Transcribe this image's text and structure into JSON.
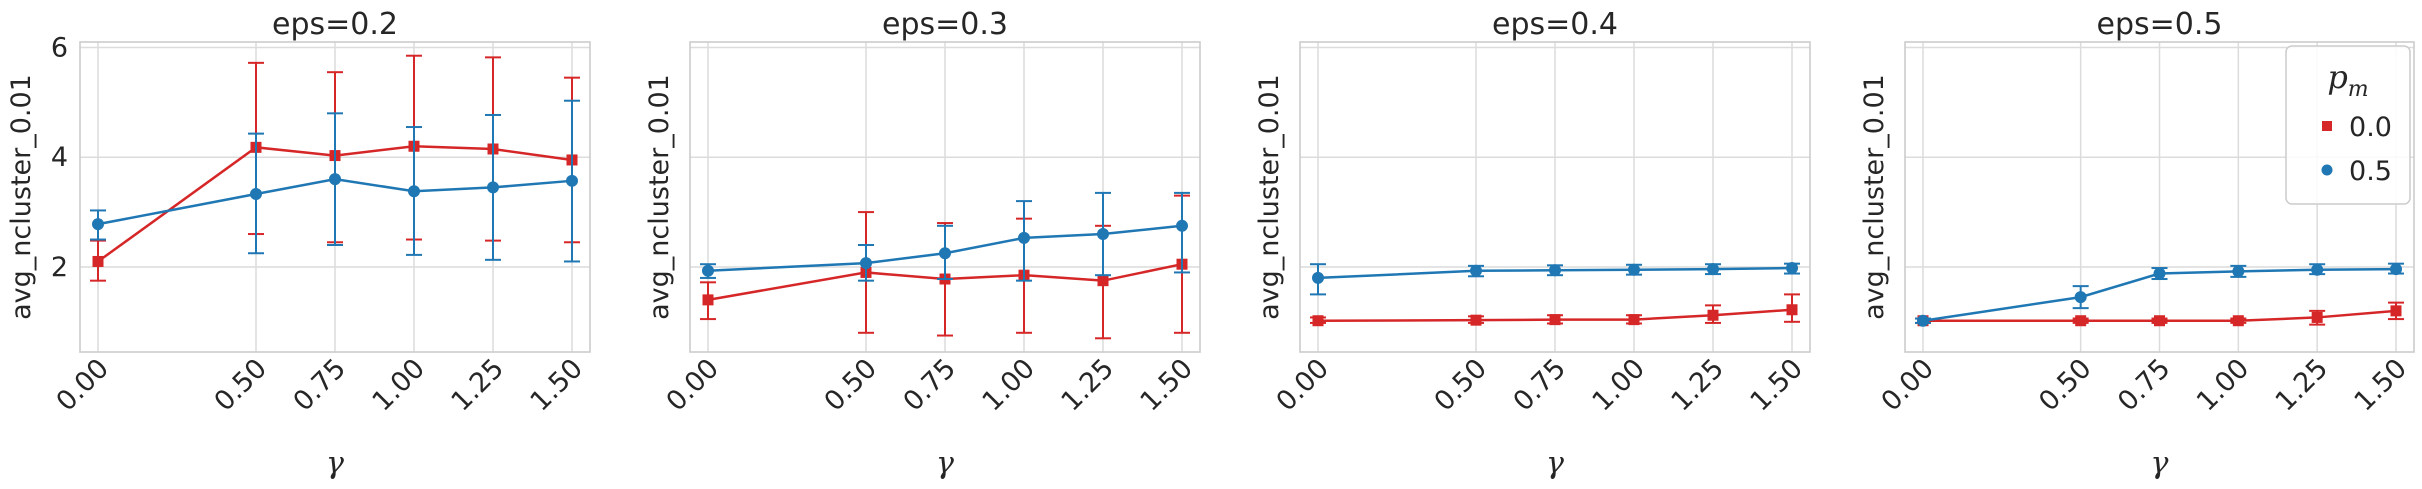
{
  "chart_data": [
    {
      "type": "line",
      "title": "eps=0.2",
      "xlabel": "γ",
      "ylabel": "avg_ncluster_0.01",
      "x": [
        0.0,
        0.5,
        0.75,
        1.0,
        1.25,
        1.5
      ],
      "xticklabels": [
        "0.00",
        "0.50",
        "0.75",
        "1.00",
        "1.25",
        "1.50"
      ],
      "ylim": [
        0.45,
        6.1
      ],
      "yticks": [
        2,
        4,
        6
      ],
      "ytick_labels": [
        "2",
        "4",
        "6"
      ],
      "grid": true,
      "series": [
        {
          "name": "0.0",
          "color": "#d62728",
          "marker": "square",
          "values": [
            2.1,
            4.18,
            4.03,
            4.2,
            4.15,
            3.95
          ],
          "err_low": [
            1.75,
            2.6,
            2.45,
            2.5,
            2.48,
            2.45
          ],
          "err_high": [
            2.48,
            5.72,
            5.55,
            5.85,
            5.82,
            5.45
          ]
        },
        {
          "name": "0.5",
          "color": "#1f77b4",
          "marker": "circle",
          "values": [
            2.78,
            3.33,
            3.6,
            3.38,
            3.45,
            3.57
          ],
          "err_low": [
            2.5,
            2.25,
            2.4,
            2.22,
            2.13,
            2.1
          ],
          "err_high": [
            3.03,
            4.43,
            4.8,
            4.55,
            4.77,
            5.03
          ]
        }
      ]
    },
    {
      "type": "line",
      "title": "eps=0.3",
      "xlabel": "γ",
      "ylabel": "avg_ncluster_0.01",
      "x": [
        0.0,
        0.5,
        0.75,
        1.0,
        1.25,
        1.5
      ],
      "xticklabels": [
        "0.00",
        "0.50",
        "0.75",
        "1.00",
        "1.25",
        "1.50"
      ],
      "ylim": [
        0.45,
        6.1
      ],
      "yticks": [
        2,
        4,
        6
      ],
      "ytick_labels": [],
      "grid": true,
      "series": [
        {
          "name": "0.0",
          "color": "#d62728",
          "marker": "square",
          "values": [
            1.4,
            1.9,
            1.78,
            1.85,
            1.75,
            2.05
          ],
          "err_low": [
            1.05,
            0.8,
            0.75,
            0.8,
            0.7,
            0.8
          ],
          "err_high": [
            1.72,
            3.0,
            2.8,
            2.88,
            2.75,
            3.3
          ]
        },
        {
          "name": "0.5",
          "color": "#1f77b4",
          "marker": "circle",
          "values": [
            1.93,
            2.07,
            2.25,
            2.53,
            2.6,
            2.75
          ],
          "err_low": [
            1.8,
            1.75,
            1.78,
            1.75,
            1.85,
            1.9
          ],
          "err_high": [
            2.05,
            2.4,
            2.75,
            3.2,
            3.35,
            3.35
          ]
        }
      ]
    },
    {
      "type": "line",
      "title": "eps=0.4",
      "xlabel": "γ",
      "ylabel": "avg_ncluster_0.01",
      "x": [
        0.0,
        0.5,
        0.75,
        1.0,
        1.25,
        1.5
      ],
      "xticklabels": [
        "0.00",
        "0.50",
        "0.75",
        "1.00",
        "1.25",
        "1.50"
      ],
      "ylim": [
        0.45,
        6.1
      ],
      "yticks": [
        2,
        4,
        6
      ],
      "ytick_labels": [],
      "grid": true,
      "series": [
        {
          "name": "0.0",
          "color": "#d62728",
          "marker": "square",
          "values": [
            1.02,
            1.03,
            1.04,
            1.04,
            1.12,
            1.22
          ],
          "err_low": [
            0.98,
            0.98,
            0.97,
            0.97,
            0.98,
            1.0
          ],
          "err_high": [
            1.08,
            1.1,
            1.12,
            1.12,
            1.3,
            1.5
          ]
        },
        {
          "name": "0.5",
          "color": "#1f77b4",
          "marker": "circle",
          "values": [
            1.8,
            1.93,
            1.94,
            1.95,
            1.96,
            1.98
          ],
          "err_low": [
            1.5,
            1.83,
            1.85,
            1.86,
            1.87,
            1.88
          ],
          "err_high": [
            2.05,
            2.02,
            2.03,
            2.04,
            2.05,
            2.06
          ]
        }
      ]
    },
    {
      "type": "line",
      "title": "eps=0.5",
      "xlabel": "γ",
      "ylabel": "avg_ncluster_0.01",
      "x": [
        0.0,
        0.5,
        0.75,
        1.0,
        1.25,
        1.5
      ],
      "xticklabels": [
        "0.00",
        "0.50",
        "0.75",
        "1.00",
        "1.25",
        "1.50"
      ],
      "ylim": [
        0.45,
        6.1
      ],
      "yticks": [
        2,
        4,
        6
      ],
      "ytick_labels": [],
      "grid": true,
      "legend": {
        "title": "p_m",
        "placement": "top-right"
      },
      "series": [
        {
          "name": "0.0",
          "color": "#d62728",
          "marker": "square",
          "values": [
            1.02,
            1.02,
            1.02,
            1.02,
            1.08,
            1.2
          ],
          "err_low": [
            0.98,
            0.98,
            0.98,
            0.98,
            0.95,
            1.05
          ],
          "err_high": [
            1.06,
            1.06,
            1.06,
            1.06,
            1.2,
            1.35
          ]
        },
        {
          "name": "0.5",
          "color": "#1f77b4",
          "marker": "circle",
          "values": [
            1.02,
            1.45,
            1.88,
            1.92,
            1.95,
            1.96
          ],
          "err_low": [
            0.98,
            1.25,
            1.78,
            1.82,
            1.87,
            1.88
          ],
          "err_high": [
            1.06,
            1.65,
            1.98,
            2.02,
            2.05,
            2.06
          ]
        }
      ]
    }
  ]
}
